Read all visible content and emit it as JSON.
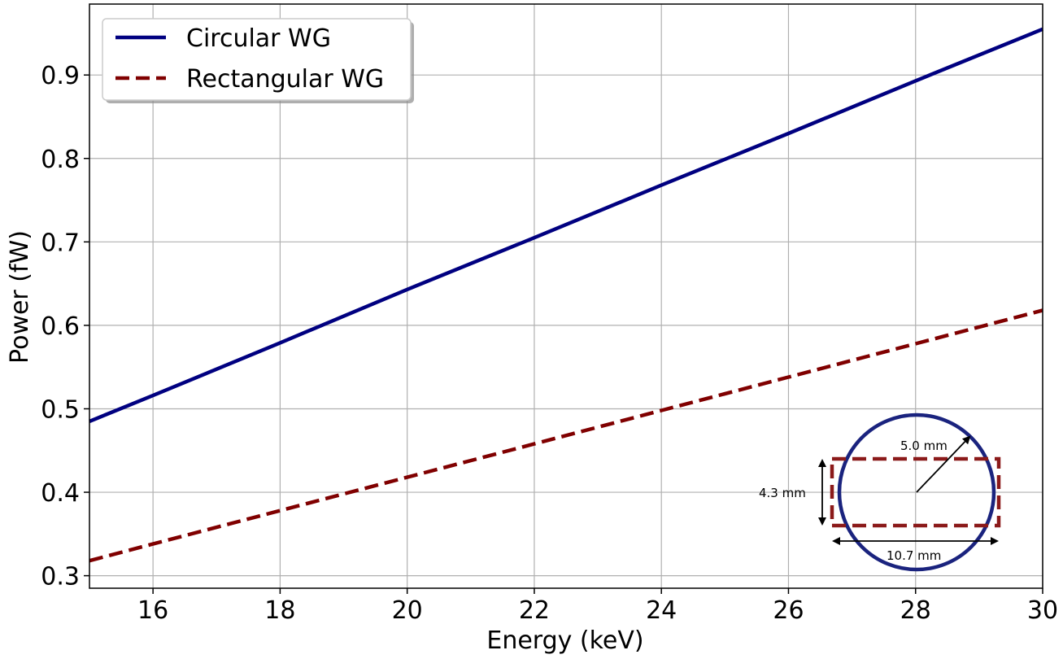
{
  "chart_data": {
    "type": "line",
    "title": "",
    "xlabel": "Energy (keV)",
    "ylabel": "Power (fW)",
    "xlim": [
      15,
      30
    ],
    "ylim": [
      0.285,
      0.985
    ],
    "xticks": [
      16,
      18,
      20,
      22,
      24,
      26,
      28,
      30
    ],
    "yticks": [
      0.3,
      0.4,
      0.5,
      0.6,
      0.7,
      0.8,
      0.9
    ],
    "xtick_labels": [
      "16",
      "18",
      "20",
      "22",
      "24",
      "26",
      "28",
      "30"
    ],
    "ytick_labels": [
      "0.3",
      "0.4",
      "0.5",
      "0.6",
      "0.7",
      "0.8",
      "0.9"
    ],
    "grid": true,
    "legend_position": "top-left",
    "series": [
      {
        "name": "Circular WG",
        "color": "#000080",
        "style": "solid",
        "x": [
          15,
          16,
          18,
          20,
          22,
          24,
          26,
          28,
          30
        ],
        "y": [
          0.485,
          0.516,
          0.579,
          0.643,
          0.705,
          0.768,
          0.83,
          0.893,
          0.955
        ]
      },
      {
        "name": "Rectangular WG",
        "color": "#800000",
        "style": "dashed",
        "x": [
          15,
          16,
          18,
          20,
          22,
          24,
          26,
          28,
          30
        ],
        "y": [
          0.318,
          0.338,
          0.378,
          0.418,
          0.458,
          0.498,
          0.538,
          0.578,
          0.618
        ]
      }
    ],
    "inset": {
      "description_labels": {
        "radius": "5.0 mm",
        "height": "4.3 mm",
        "width": "10.7 mm"
      },
      "circle_color": "#1a237e",
      "rect_color": "#8b1a1a"
    }
  }
}
